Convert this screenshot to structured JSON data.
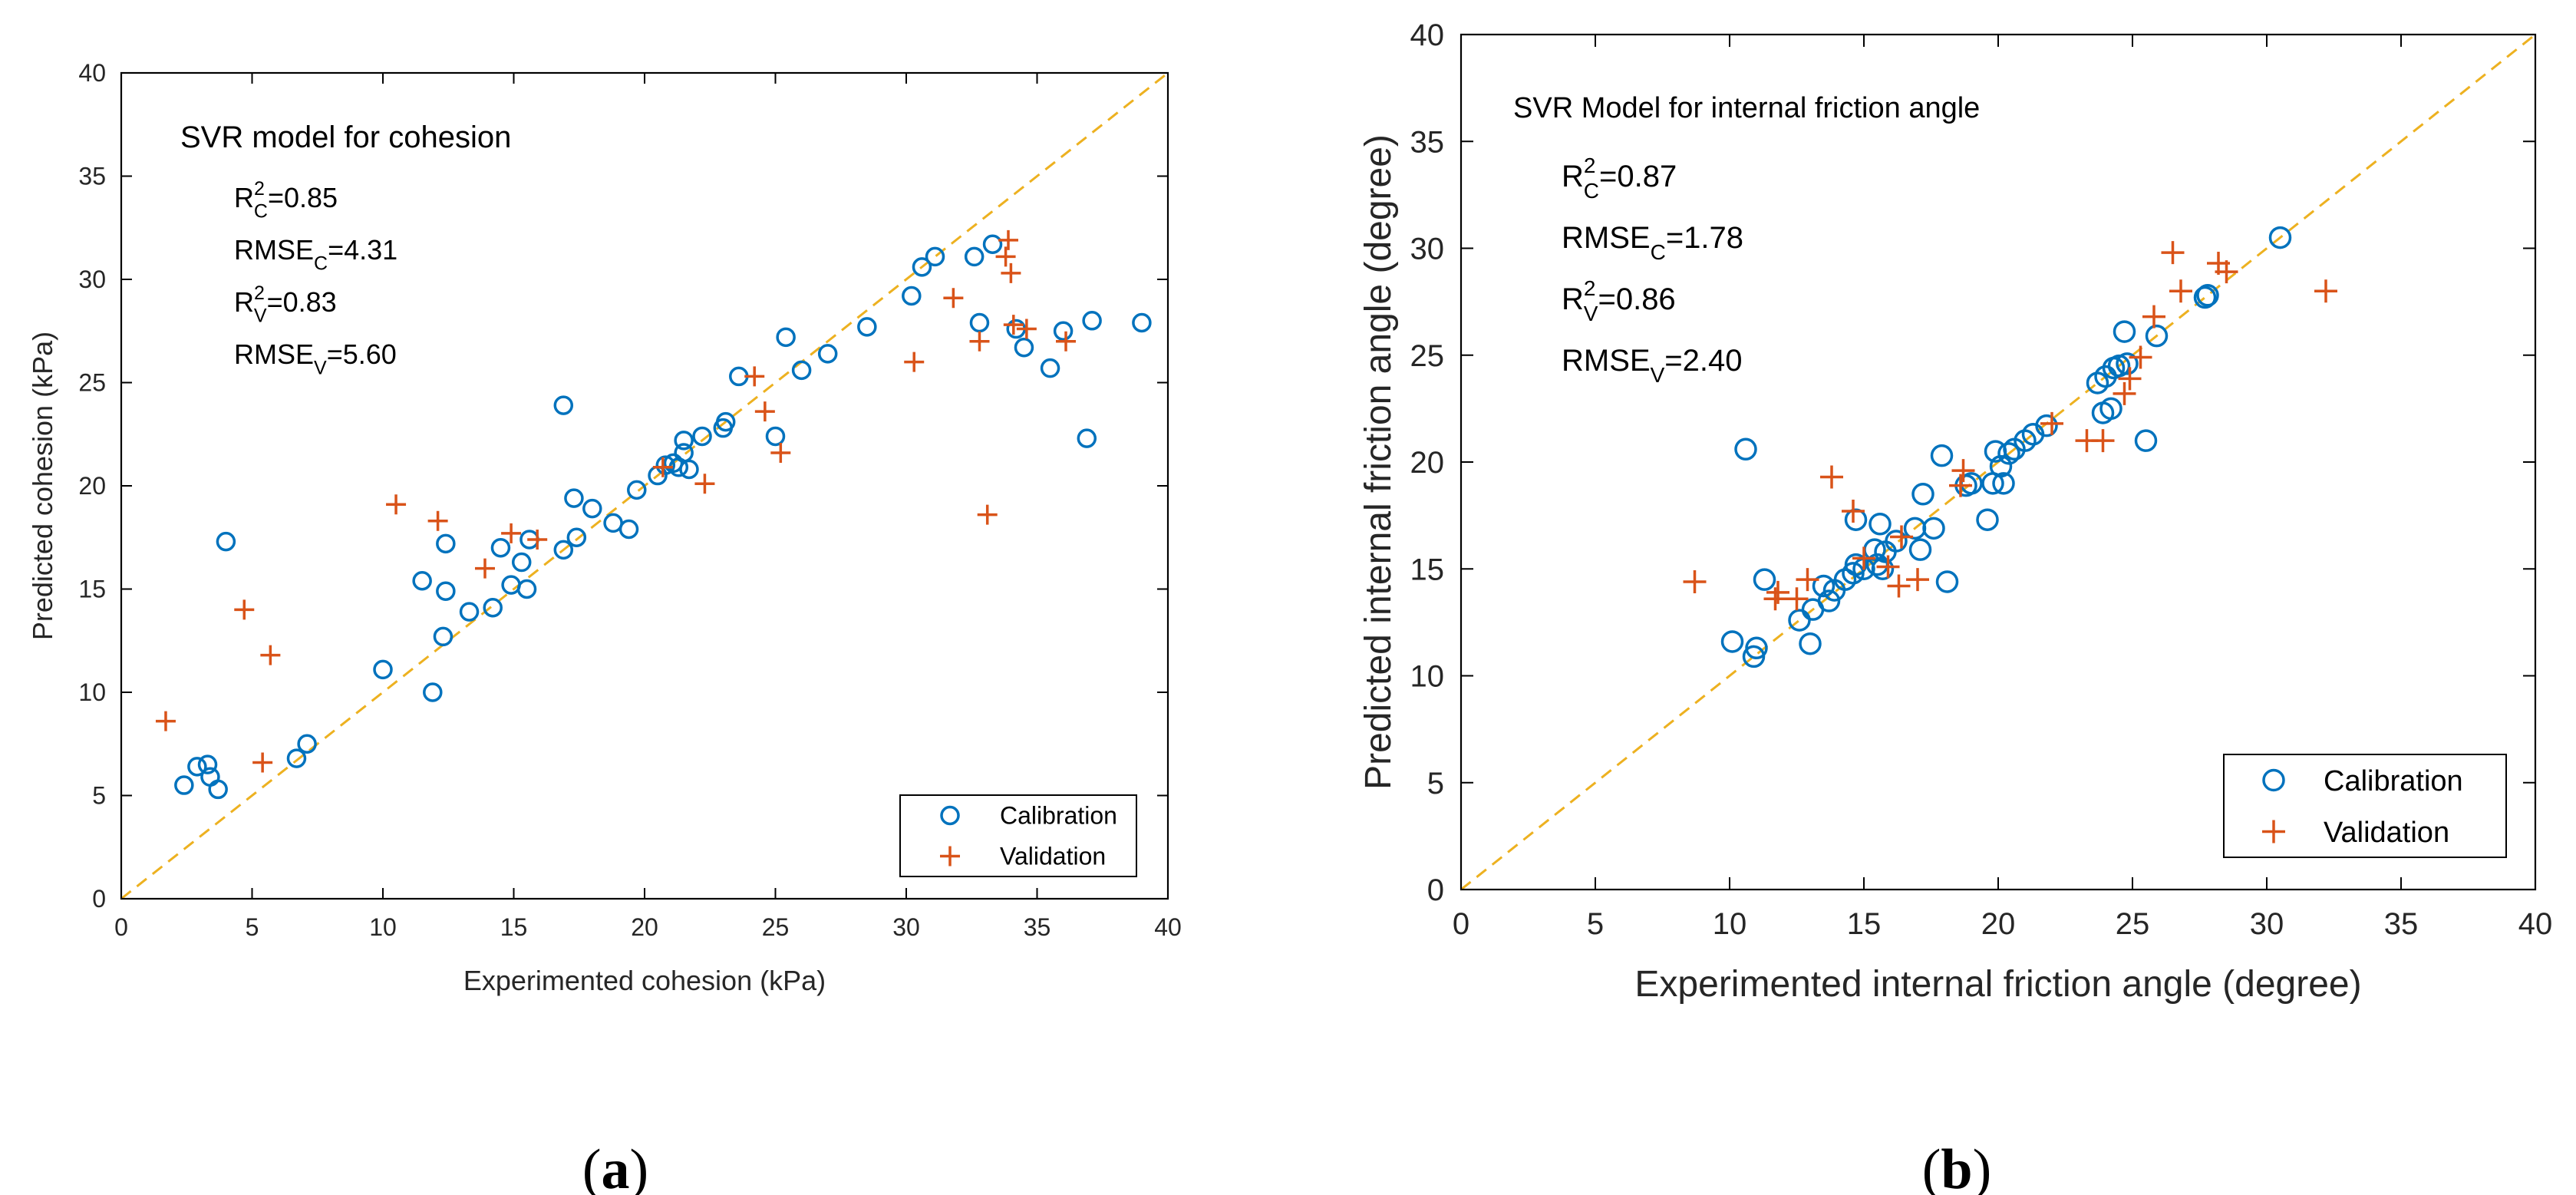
{
  "chart_data": [
    {
      "type": "scatter",
      "panel_label": "(a)",
      "title": "SVR model for cohesion",
      "xlabel": "Experimented cohesion (kPa)",
      "ylabel": "Predicted cohesion (kPa)",
      "xlim": [
        0,
        40
      ],
      "ylim": [
        0,
        40
      ],
      "xticks": [
        "0",
        "5",
        "10",
        "15",
        "20",
        "25",
        "30",
        "35",
        "40"
      ],
      "yticks": [
        "0",
        "5",
        "10",
        "15",
        "20",
        "25",
        "30",
        "35",
        "40"
      ],
      "grid": false,
      "reference_line": "y = x",
      "stats": [
        {
          "base": "R",
          "sup": "2",
          "sub": "C",
          "value": "=0.85"
        },
        {
          "base": "RMSE",
          "sup": "",
          "sub": "C",
          "value": "=4.31"
        },
        {
          "base": "R",
          "sup": "2",
          "sub": "V",
          "value": "=0.83"
        },
        {
          "base": "RMSE",
          "sup": "",
          "sub": "V",
          "value": "=5.60"
        }
      ],
      "legend": {
        "position": "bottom-right",
        "entries": [
          "Calibration",
          "Validation"
        ]
      },
      "series": [
        {
          "name": "Calibration",
          "marker": "circle",
          "color": "#0072BD",
          "points": [
            [
              2.4,
              5.5
            ],
            [
              2.9,
              6.4
            ],
            [
              3.3,
              6.5
            ],
            [
              3.4,
              5.9
            ],
            [
              3.7,
              5.3
            ],
            [
              4.0,
              17.3
            ],
            [
              6.7,
              6.8
            ],
            [
              7.1,
              7.5
            ],
            [
              10.0,
              11.1
            ],
            [
              11.5,
              15.4
            ],
            [
              11.9,
              10.0
            ],
            [
              12.3,
              12.7
            ],
            [
              12.4,
              14.9
            ],
            [
              12.4,
              17.2
            ],
            [
              13.3,
              13.9
            ],
            [
              14.2,
              14.1
            ],
            [
              14.5,
              17.0
            ],
            [
              14.9,
              15.2
            ],
            [
              15.3,
              16.3
            ],
            [
              15.5,
              15.0
            ],
            [
              15.6,
              17.4
            ],
            [
              16.9,
              16.9
            ],
            [
              16.9,
              23.9
            ],
            [
              17.3,
              19.4
            ],
            [
              17.4,
              17.5
            ],
            [
              18.0,
              18.9
            ],
            [
              18.8,
              18.2
            ],
            [
              19.4,
              17.9
            ],
            [
              19.7,
              19.8
            ],
            [
              20.5,
              20.5
            ],
            [
              20.8,
              21.0
            ],
            [
              21.1,
              21.1
            ],
            [
              21.3,
              20.9
            ],
            [
              21.5,
              21.6
            ],
            [
              21.5,
              22.2
            ],
            [
              21.7,
              20.8
            ],
            [
              22.2,
              22.4
            ],
            [
              23.0,
              22.8
            ],
            [
              23.1,
              23.1
            ],
            [
              23.6,
              25.3
            ],
            [
              25.0,
              22.4
            ],
            [
              25.4,
              27.2
            ],
            [
              26.0,
              25.6
            ],
            [
              27.0,
              26.4
            ],
            [
              28.5,
              27.7
            ],
            [
              30.2,
              29.2
            ],
            [
              30.6,
              30.6
            ],
            [
              31.1,
              31.1
            ],
            [
              32.6,
              31.1
            ],
            [
              32.8,
              27.9
            ],
            [
              33.3,
              31.7
            ],
            [
              34.2,
              27.6
            ],
            [
              34.5,
              26.7
            ],
            [
              35.5,
              25.7
            ],
            [
              36.0,
              27.5
            ],
            [
              36.9,
              22.3
            ],
            [
              37.1,
              28.0
            ],
            [
              39.0,
              27.9
            ]
          ]
        },
        {
          "name": "Validation",
          "marker": "plus",
          "color": "#D95319",
          "points": [
            [
              1.7,
              8.6
            ],
            [
              4.7,
              14.0
            ],
            [
              5.4,
              6.6
            ],
            [
              5.7,
              11.8
            ],
            [
              10.5,
              19.1
            ],
            [
              12.1,
              18.3
            ],
            [
              13.9,
              16.0
            ],
            [
              14.9,
              17.7
            ],
            [
              15.9,
              17.4
            ],
            [
              20.7,
              20.9
            ],
            [
              22.3,
              20.1
            ],
            [
              24.2,
              25.3
            ],
            [
              24.6,
              23.6
            ],
            [
              25.2,
              21.6
            ],
            [
              30.3,
              26.0
            ],
            [
              31.8,
              29.1
            ],
            [
              32.8,
              27.0
            ],
            [
              33.1,
              18.6
            ],
            [
              33.8,
              31.1
            ],
            [
              33.9,
              31.9
            ],
            [
              34.0,
              30.3
            ],
            [
              34.1,
              27.8
            ],
            [
              34.6,
              27.6
            ],
            [
              36.1,
              27.0
            ]
          ]
        }
      ]
    },
    {
      "type": "scatter",
      "panel_label": "(b)",
      "title": "SVR Model for  internal friction angle",
      "xlabel": "Experimented internal friction angle (degree)",
      "ylabel": "Predicted internal friction angle (degree)",
      "xlim": [
        0,
        40
      ],
      "ylim": [
        0,
        40
      ],
      "xticks": [
        "0",
        "5",
        "10",
        "15",
        "20",
        "25",
        "30",
        "35",
        "40"
      ],
      "yticks": [
        "0",
        "5",
        "10",
        "15",
        "20",
        "25",
        "30",
        "35",
        "40"
      ],
      "grid": false,
      "reference_line": "y = x",
      "stats": [
        {
          "base": "R",
          "sup": "2",
          "sub": "C",
          "value": "=0.87"
        },
        {
          "base": "RMSE",
          "sup": "",
          "sub": "C",
          "value": "=1.78"
        },
        {
          "base": "R",
          "sup": "2",
          "sub": "V",
          "value": "=0.86"
        },
        {
          "base": "RMSE",
          "sup": "",
          "sub": "V",
          "value": "=2.40"
        }
      ],
      "legend": {
        "position": "bottom-right",
        "entries": [
          "Calibration",
          "Validation"
        ]
      },
      "series": [
        {
          "name": "Calibration",
          "marker": "circle",
          "color": "#0072BD",
          "points": [
            [
              10.1,
              11.6
            ],
            [
              10.6,
              20.6
            ],
            [
              10.9,
              10.9
            ],
            [
              11.0,
              11.3
            ],
            [
              11.3,
              14.5
            ],
            [
              12.6,
              12.6
            ],
            [
              13.0,
              11.5
            ],
            [
              13.1,
              13.1
            ],
            [
              13.5,
              14.2
            ],
            [
              13.7,
              13.5
            ],
            [
              13.9,
              14.0
            ],
            [
              14.3,
              14.5
            ],
            [
              14.6,
              14.8
            ],
            [
              14.7,
              15.2
            ],
            [
              14.7,
              17.3
            ],
            [
              15.0,
              15.0
            ],
            [
              15.4,
              15.9
            ],
            [
              15.5,
              15.2
            ],
            [
              15.6,
              17.1
            ],
            [
              15.7,
              15.0
            ],
            [
              15.8,
              15.8
            ],
            [
              16.2,
              16.3
            ],
            [
              16.9,
              16.9
            ],
            [
              17.1,
              15.9
            ],
            [
              17.2,
              18.5
            ],
            [
              17.6,
              16.9
            ],
            [
              17.9,
              20.3
            ],
            [
              18.1,
              14.4
            ],
            [
              18.8,
              18.9
            ],
            [
              19.0,
              19.0
            ],
            [
              19.6,
              17.3
            ],
            [
              19.8,
              19.0
            ],
            [
              19.9,
              20.5
            ],
            [
              20.1,
              19.8
            ],
            [
              20.2,
              19.0
            ],
            [
              20.4,
              20.4
            ],
            [
              20.6,
              20.6
            ],
            [
              21.0,
              21.0
            ],
            [
              21.3,
              21.3
            ],
            [
              21.8,
              21.7
            ],
            [
              23.7,
              23.7
            ],
            [
              23.9,
              22.3
            ],
            [
              24.0,
              24.0
            ],
            [
              24.2,
              22.5
            ],
            [
              24.3,
              24.4
            ],
            [
              24.5,
              24.5
            ],
            [
              24.7,
              26.1
            ],
            [
              24.8,
              24.6
            ],
            [
              25.5,
              21.0
            ],
            [
              25.9,
              25.9
            ],
            [
              27.7,
              27.7
            ],
            [
              27.8,
              27.8
            ],
            [
              30.5,
              30.5
            ]
          ]
        },
        {
          "name": "Validation",
          "marker": "plus",
          "color": "#D95319",
          "points": [
            [
              8.7,
              14.4
            ],
            [
              11.7,
              13.6
            ],
            [
              11.8,
              13.9
            ],
            [
              12.5,
              13.6
            ],
            [
              12.9,
              14.5
            ],
            [
              13.8,
              19.3
            ],
            [
              14.6,
              17.7
            ],
            [
              15.0,
              15.5
            ],
            [
              15.9,
              15.1
            ],
            [
              16.3,
              14.2
            ],
            [
              16.4,
              16.5
            ],
            [
              17.0,
              14.5
            ],
            [
              18.6,
              18.9
            ],
            [
              18.7,
              19.6
            ],
            [
              22.0,
              21.8
            ],
            [
              23.3,
              21.0
            ],
            [
              23.9,
              21.0
            ],
            [
              24.7,
              23.2
            ],
            [
              24.9,
              23.9
            ],
            [
              25.3,
              24.9
            ],
            [
              25.8,
              26.8
            ],
            [
              26.5,
              29.8
            ],
            [
              26.8,
              28.0
            ],
            [
              28.2,
              29.3
            ],
            [
              28.5,
              28.9
            ],
            [
              32.2,
              28.0
            ]
          ]
        }
      ]
    }
  ]
}
